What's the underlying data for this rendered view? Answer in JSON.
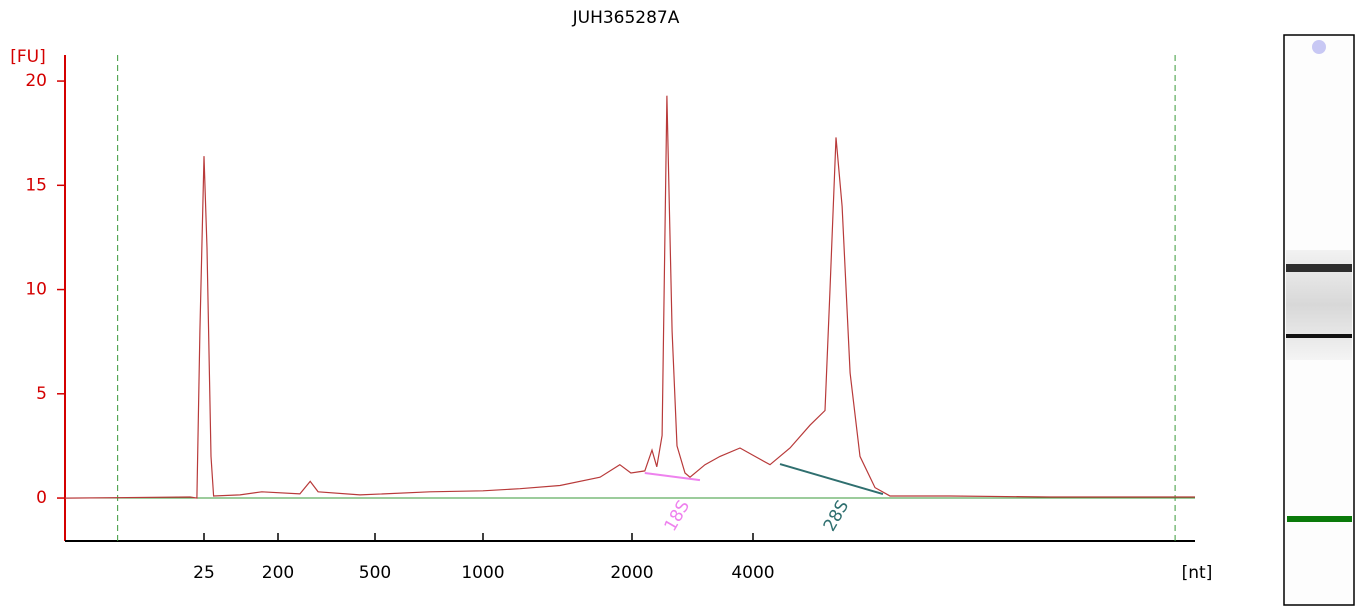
{
  "chart_data": {
    "type": "line",
    "title": "JUH365287A",
    "y_label": "[FU]",
    "x_label": "[nt]",
    "color": "#b83a3a",
    "x": [
      0.5,
      16.9,
      20.5,
      22.3,
      25,
      27.2,
      30.4,
      32.7,
      68.7,
      127,
      246,
      271,
      292,
      434,
      711,
      1000,
      1188,
      1431,
      1723,
      1890,
      1990,
      2152,
      2243,
      2305,
      2376,
      2443,
      2516,
      2588,
      2710,
      2788,
      3038,
      3311,
      3713,
      4046,
      4410,
      4945,
      5546,
      6042,
      6216,
      6434,
      6662,
      6975,
      7382,
      8045,
      8768,
      12370,
      21930,
      50300
    ],
    "values": [
      0,
      0.05,
      0,
      8,
      16.4,
      12,
      2,
      0.1,
      0.15,
      0.3,
      0.2,
      0.8,
      0.3,
      0.15,
      0.3,
      0.35,
      0.45,
      0.6,
      1.0,
      1.6,
      1.2,
      1.3,
      2.3,
      1.5,
      3,
      19.3,
      8,
      2.5,
      1.2,
      1.0,
      1.6,
      2.0,
      2.4,
      2.0,
      1.6,
      2.4,
      3.5,
      4.2,
      10,
      17.3,
      14,
      6,
      2,
      0.5,
      0.1,
      0.1,
      0.05,
      0.05
    ],
    "xlim": [
      0.5,
      50300
    ],
    "ylim": [
      -2.06,
      21.25
    ],
    "xticks": [
      25,
      200,
      500,
      1000,
      2000,
      4000
    ],
    "yticks": [
      0,
      5,
      10,
      15,
      20
    ],
    "marker_lines": [
      2.2,
      44880
    ],
    "annotations": [
      {
        "label": "18S",
        "color": "#ee82ee",
        "x": [
          2152,
          2952
        ],
        "y": [
          1.2,
          0.86
        ]
      },
      {
        "label": "28S",
        "color": "#2f6f6f",
        "x": [
          4669,
          8420
        ],
        "y": [
          1.63,
          0.19
        ]
      }
    ]
  }
}
